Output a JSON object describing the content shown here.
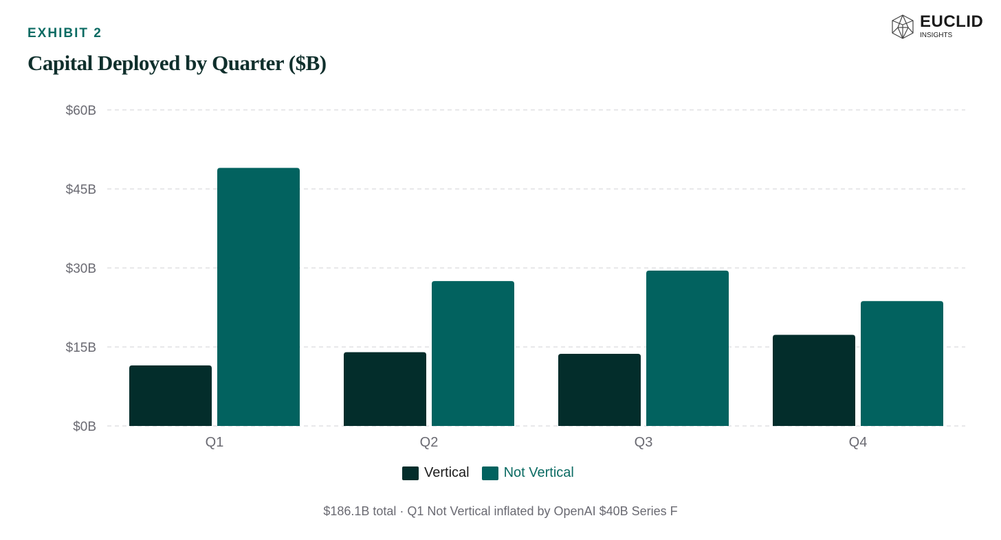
{
  "exhibit_label": "EXHIBIT 2",
  "brand": {
    "name": "EUCLID",
    "subtitle": "INSIGHTS"
  },
  "footnote": "$186.1B total · Q1 Not Vertical inflated by OpenAI $40B Series F",
  "colors": {
    "vertical": "#032d2b",
    "not_vertical": "#02625f",
    "grid": "#d9d9de",
    "axis_text": "#6a6a72"
  },
  "chart_data": {
    "type": "bar",
    "title": "Capital Deployed by Quarter ($B)",
    "categories": [
      "Q1",
      "Q2",
      "Q3",
      "Q4"
    ],
    "series": [
      {
        "name": "Vertical",
        "values": [
          11.5,
          14.0,
          13.7,
          17.3
        ]
      },
      {
        "name": "Not Vertical",
        "values": [
          49.0,
          27.5,
          29.5,
          23.7
        ]
      }
    ],
    "ylim": [
      0,
      60
    ],
    "yticks": [
      0,
      15,
      30,
      45,
      60
    ],
    "ytick_labels": [
      "$0B",
      "$15B",
      "$30B",
      "$45B",
      "$60B"
    ],
    "xlabel": "",
    "ylabel": "",
    "grid": true,
    "legend_position": "bottom-center"
  }
}
